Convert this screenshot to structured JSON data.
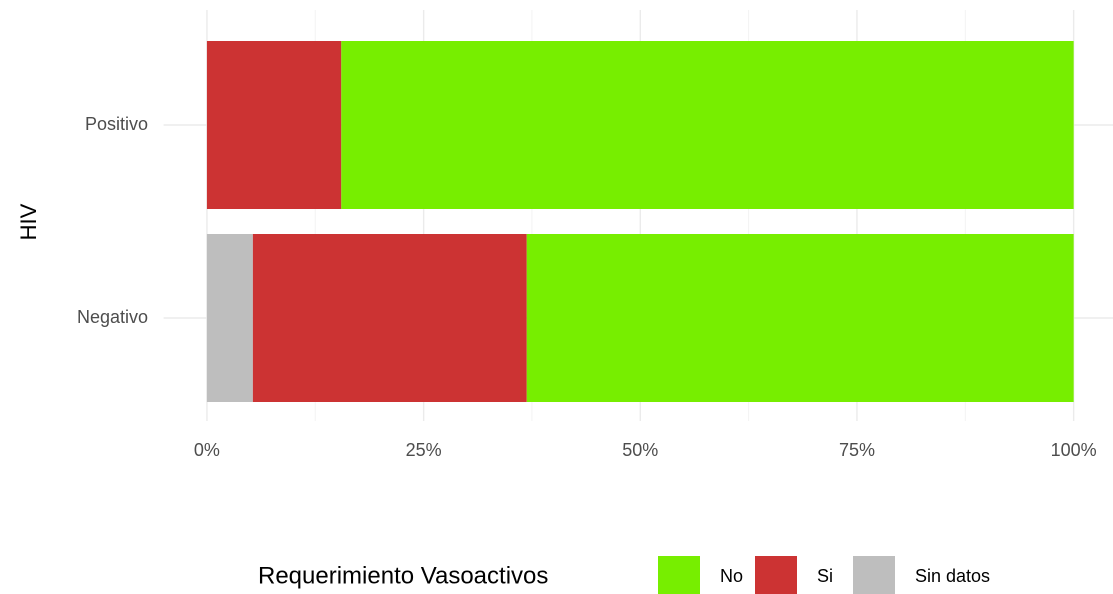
{
  "chart_data": {
    "type": "stacked_bar_horizontal",
    "y_axis_label": "HIV",
    "categories": [
      "Positivo",
      "Negativo"
    ],
    "series": [
      {
        "name": "Sin datos",
        "color": "#bebebe",
        "values": [
          0,
          5.3
        ]
      },
      {
        "name": "Si",
        "color": "#cc3333",
        "values": [
          15.5,
          31.6
        ]
      },
      {
        "name": "No",
        "color": "#77ee00",
        "values": [
          84.5,
          63.1
        ]
      }
    ],
    "legend_title": "Requerimiento Vasoactivos",
    "legend_order": [
      "No",
      "Si",
      "Sin datos"
    ],
    "legend_position": "bottom",
    "xlim": [
      -5,
      105
    ],
    "xticks": [
      {
        "value": 0,
        "label": "0%"
      },
      {
        "value": 25,
        "label": "25%"
      },
      {
        "value": 50,
        "label": "50%"
      },
      {
        "value": 75,
        "label": "75%"
      },
      {
        "value": 100,
        "label": "100%"
      }
    ],
    "xminor_ticks": [
      12.5,
      37.5,
      62.5,
      87.5
    ],
    "grid": true
  }
}
